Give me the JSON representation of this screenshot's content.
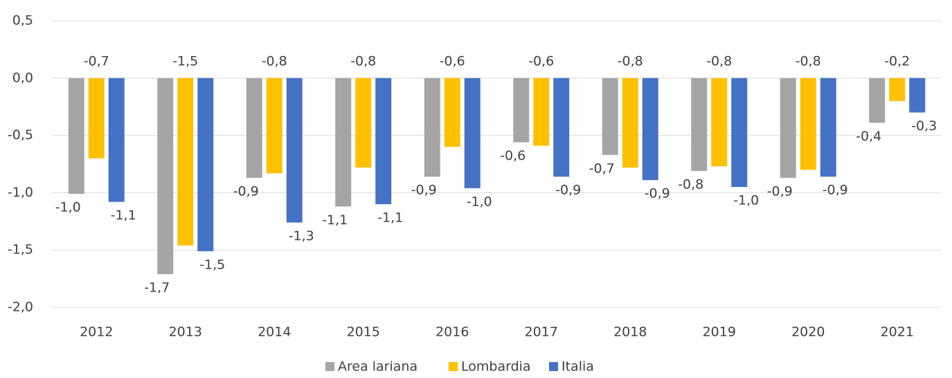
{
  "chart_data": {
    "type": "bar",
    "categories": [
      "2012",
      "2013",
      "2014",
      "2015",
      "2016",
      "2017",
      "2018",
      "2019",
      "2020",
      "2021"
    ],
    "series": [
      {
        "name": "Area lariana",
        "color": "#a5a5a5",
        "values": [
          -1.01,
          -1.71,
          -0.87,
          -1.12,
          -0.86,
          -0.56,
          -0.67,
          -0.81,
          -0.87,
          -0.39
        ],
        "value_labels": [
          "-1,0",
          "-1,7",
          "-0,9",
          "-1,1",
          "-0,9",
          "-0,6",
          "-0,7",
          "-0,8",
          "-0,9",
          "-0,4"
        ]
      },
      {
        "name": "Lombardia",
        "color": "#ffc000",
        "values": [
          -0.7,
          -1.46,
          -0.83,
          -0.78,
          -0.6,
          -0.59,
          -0.78,
          -0.77,
          -0.8,
          -0.2
        ],
        "value_labels": [
          "-0,7",
          "-1,5",
          "-0,8",
          "-0,8",
          "-0,6",
          "-0,6",
          "-0,8",
          "-0,8",
          "-0,8",
          "-0,2"
        ]
      },
      {
        "name": "Italia",
        "color": "#4472c4",
        "values": [
          -1.08,
          -1.51,
          -1.26,
          -1.1,
          -0.96,
          -0.86,
          -0.89,
          -0.95,
          -0.86,
          -0.3
        ],
        "value_labels": [
          "-1,1",
          "-1,5",
          "-1,3",
          "-1,1",
          "-1,0",
          "-0,9",
          "-0,9",
          "-1,0",
          "-0,9",
          "-0,3"
        ]
      }
    ],
    "ylim": [
      -2.0,
      0.5
    ],
    "yticks": [
      {
        "value": 0.5,
        "label": "0,5"
      },
      {
        "value": 0.0,
        "label": "0,0"
      },
      {
        "value": -0.5,
        "label": "-0,5"
      },
      {
        "value": -1.0,
        "label": "-1,0"
      },
      {
        "value": -1.5,
        "label": "-1,5"
      },
      {
        "value": -2.0,
        "label": "-2,0"
      }
    ],
    "grid": true,
    "legend": "bottom"
  }
}
